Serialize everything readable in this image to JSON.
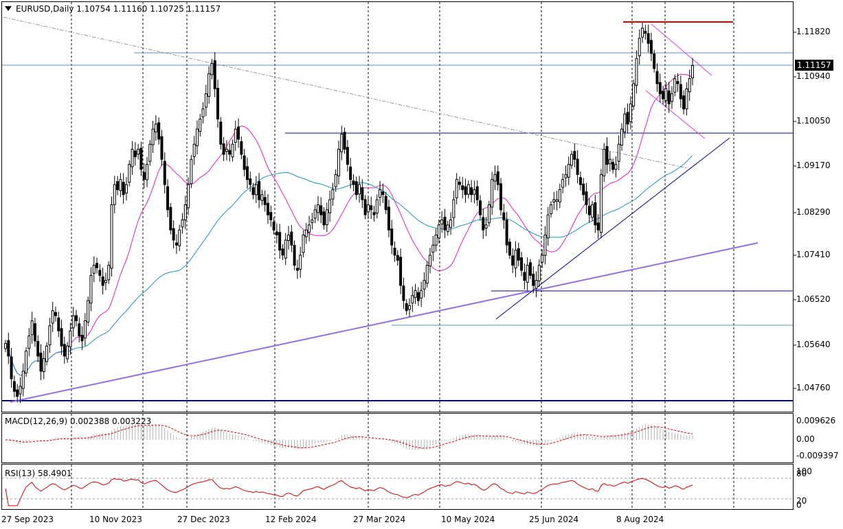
{
  "chart_data": [
    {
      "type": "candlestick",
      "symbol": "EURUSD",
      "timeframe": "Daily",
      "header": "EURUSD,Daily  1.10754 1.11160 1.10725 1.11157",
      "ohlc": {
        "open": 1.10754,
        "high": 1.1116,
        "low": 1.10725,
        "close": 1.11157
      },
      "last_price_label": "1.11157",
      "y_ticks": [
        "1.11820",
        "1.10940",
        "1.10050",
        "1.09170",
        "1.08290",
        "1.07410",
        "1.06520",
        "1.05640",
        "1.04760"
      ],
      "x_ticks": [
        "27 Sep 2023",
        "10 Nov 2023",
        "27 Dec 2023",
        "12 Feb 2024",
        "27 Mar 2024",
        "10 May 2024",
        "25 Jun 2024",
        "8 Aug 2024"
      ],
      "ylim": [
        1.0443,
        1.1252
      ],
      "grid": true,
      "closes": [
        1.0565,
        1.054,
        1.0495,
        1.047,
        1.046,
        1.048,
        1.051,
        1.055,
        1.058,
        1.061,
        1.057,
        1.054,
        1.051,
        1.0535,
        1.056,
        1.06,
        1.063,
        1.062,
        1.059,
        1.056,
        1.054,
        1.056,
        1.059,
        1.062,
        1.061,
        1.058,
        1.057,
        1.061,
        1.065,
        1.07,
        1.072,
        1.0715,
        1.07,
        1.068,
        1.069,
        1.072,
        1.084,
        1.088,
        1.087,
        1.089,
        1.086,
        1.088,
        1.092,
        1.095,
        1.0935,
        1.095,
        1.091,
        1.089,
        1.092,
        1.096,
        1.099,
        1.1,
        1.097,
        1.093,
        1.088,
        1.083,
        1.079,
        1.077,
        1.076,
        1.079,
        1.081,
        1.084,
        1.088,
        1.093,
        1.096,
        1.099,
        1.101,
        1.103,
        1.106,
        1.11,
        1.112,
        1.107,
        1.101,
        1.096,
        1.094,
        1.095,
        1.094,
        1.096,
        1.099,
        1.097,
        1.094,
        1.091,
        1.089,
        1.088,
        1.086,
        1.088,
        1.085,
        1.086,
        1.084,
        1.082,
        1.081,
        1.079,
        1.078,
        1.075,
        1.074,
        1.077,
        1.078,
        1.076,
        1.072,
        1.071,
        1.074,
        1.078,
        1.079,
        1.08,
        1.081,
        1.083,
        1.084,
        1.082,
        1.08,
        1.083,
        1.085,
        1.087,
        1.09,
        1.095,
        1.098,
        1.095,
        1.092,
        1.089,
        1.088,
        1.086,
        1.088,
        1.085,
        1.082,
        1.084,
        1.083,
        1.082,
        1.085,
        1.087,
        1.086,
        1.083,
        1.079,
        1.076,
        1.074,
        1.073,
        1.068,
        1.065,
        1.063,
        1.064,
        1.066,
        1.067,
        1.065,
        1.067,
        1.069,
        1.072,
        1.074,
        1.076,
        1.078,
        1.08,
        1.081,
        1.079,
        1.08,
        1.081,
        1.085,
        1.089,
        1.088,
        1.087,
        1.086,
        1.088,
        1.086,
        1.087,
        1.085,
        1.082,
        1.079,
        1.08,
        1.084,
        1.089,
        1.09,
        1.088,
        1.083,
        1.081,
        1.076,
        1.074,
        1.072,
        1.075,
        1.073,
        1.071,
        1.069,
        1.072,
        1.07,
        1.068,
        1.069,
        1.072,
        1.074,
        1.078,
        1.082,
        1.084,
        1.085,
        1.085,
        1.087,
        1.089,
        1.09,
        1.092,
        1.094,
        1.093,
        1.09,
        1.088,
        1.086,
        1.084,
        1.082,
        1.084,
        1.08,
        1.079,
        1.09,
        1.095,
        1.092,
        1.093,
        1.091,
        1.092,
        1.096,
        1.099,
        1.102,
        1.1,
        1.104,
        1.108,
        1.113,
        1.117,
        1.119,
        1.118,
        1.116,
        1.114,
        1.111,
        1.108,
        1.106,
        1.105,
        1.107,
        1.104,
        1.106,
        1.109,
        1.108,
        1.105,
        1.103,
        1.107,
        1.109,
        1.1116
      ]
    },
    {
      "type": "line",
      "title": "MACD(12,26,9) 0.002388 0.003223",
      "y_ticks": [
        "0.009626",
        "0.00",
        "-0.009397"
      ]
    },
    {
      "type": "line",
      "title": "RSI(13) 58.4901",
      "y_ticks": [
        "100",
        "80",
        "20",
        "0"
      ],
      "levels": [
        80,
        20
      ]
    }
  ]
}
